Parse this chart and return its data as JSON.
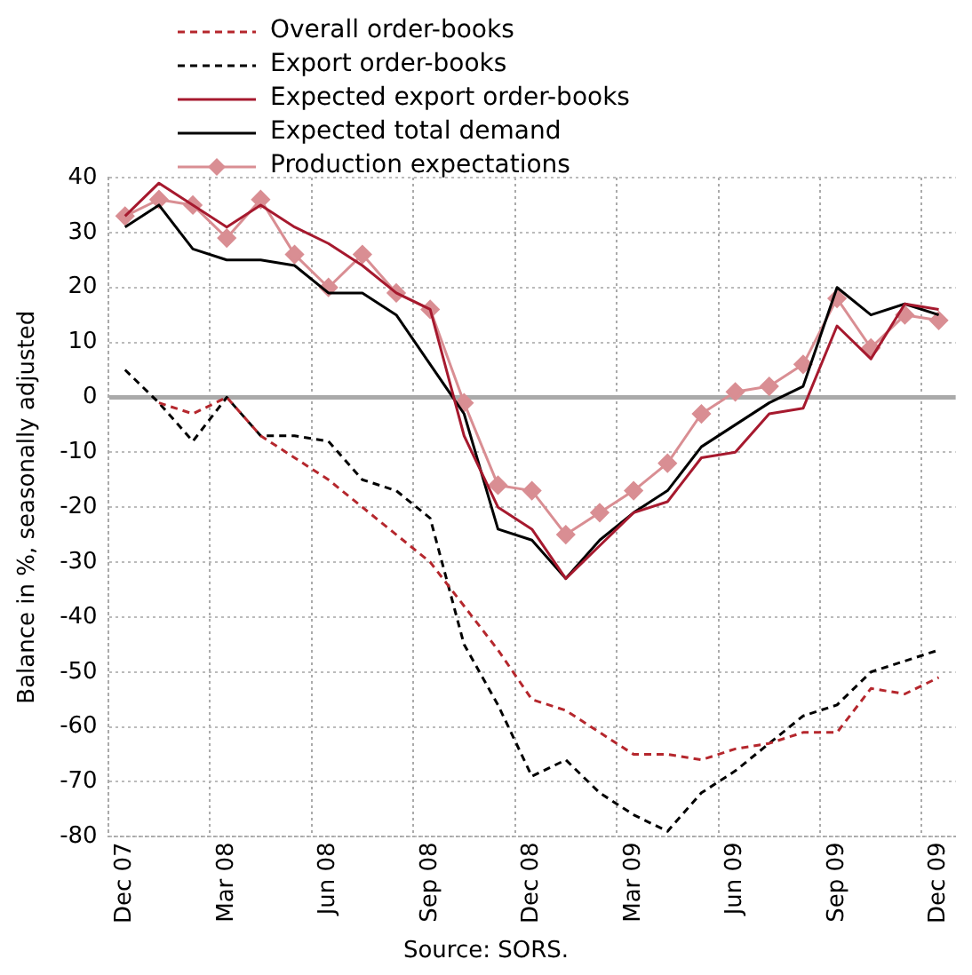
{
  "chart_data": {
    "type": "line",
    "ylabel": "Balance in %, seasonally adjusted",
    "annotations": [
      "Source: SORS."
    ],
    "categories": [
      "Dec 07",
      null,
      null,
      "Mar 08",
      null,
      null,
      "Jun 08",
      null,
      null,
      "Sep 08",
      null,
      null,
      "Dec 08",
      null,
      null,
      "Mar 09",
      null,
      null,
      "Jun 09",
      null,
      null,
      "Sep 09",
      null,
      null,
      "Dec 09"
    ],
    "series": [
      {
        "name": "Overall order-books",
        "color": "#b5272d",
        "line_style": "dashed",
        "marker": "none",
        "values": [
          null,
          -1,
          -3,
          0,
          -7,
          -11,
          -15,
          -20,
          -25,
          -30,
          -38,
          -46,
          -55,
          -57,
          -61,
          -65,
          -65,
          -66,
          -64,
          -63,
          -61,
          -61,
          -53,
          -54,
          -51
        ]
      },
      {
        "name": "Export order-books",
        "color": "#000000",
        "line_style": "dashed",
        "marker": "none",
        "values": [
          5,
          -1,
          -8,
          0,
          -7,
          -7,
          -8,
          -15,
          -17,
          -22,
          -45,
          -56,
          -69,
          -66,
          -72,
          -76,
          -79,
          -72,
          -68,
          -63,
          -58,
          -56,
          -50,
          -48,
          -46
        ]
      },
      {
        "name": "Expected export order-books",
        "color": "#a6192e",
        "line_style": "solid",
        "marker": "none",
        "values": [
          33,
          39,
          35,
          31,
          35,
          31,
          28,
          24,
          19,
          16,
          -7,
          -20,
          -24,
          -33,
          -27,
          -21,
          -19,
          -11,
          -10,
          -3,
          -2,
          13,
          7,
          17,
          16
        ]
      },
      {
        "name": "Expected total demand",
        "color": "#000000",
        "line_style": "solid",
        "marker": "none",
        "values": [
          31,
          35,
          27,
          25,
          25,
          24,
          19,
          19,
          15,
          6,
          -3,
          -24,
          -26,
          -33,
          -26,
          -21,
          -17,
          -9,
          -5,
          -1,
          2,
          20,
          15,
          17,
          15
        ]
      },
      {
        "name": "Production expectations",
        "color": "#d98e93",
        "line_style": "solid",
        "marker": "diamond",
        "values": [
          33,
          36,
          35,
          29,
          36,
          26,
          20,
          26,
          19,
          16,
          -1,
          -16,
          -17,
          -25,
          -21,
          -17,
          -12,
          -3,
          1,
          2,
          6,
          18,
          9,
          15,
          14
        ]
      }
    ],
    "ylim": [
      -80,
      40
    ],
    "yticks": [
      -80,
      -70,
      -60,
      -50,
      -40,
      -30,
      -20,
      -10,
      0,
      10,
      20,
      30,
      40
    ],
    "grid": true,
    "legend": "top"
  }
}
